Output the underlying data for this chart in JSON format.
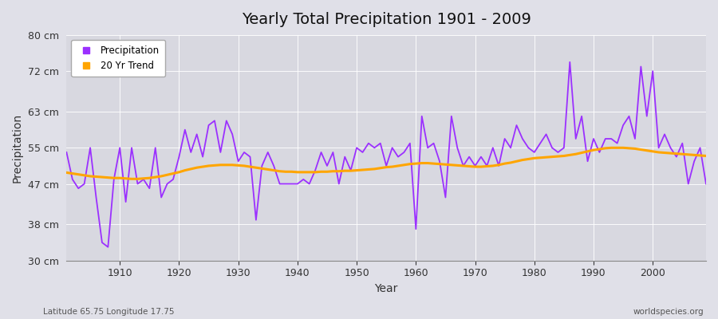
{
  "title": "Yearly Total Precipitation 1901 - 2009",
  "xlabel": "Year",
  "ylabel": "Precipitation",
  "subtitle": "Latitude 65.75 Longitude 17.75",
  "watermark": "worldspecies.org",
  "ylim": [
    30,
    80
  ],
  "yticks": [
    30,
    38,
    47,
    55,
    63,
    72,
    80
  ],
  "ytick_labels": [
    "30 cm",
    "38 cm",
    "47 cm",
    "55 cm",
    "63 cm",
    "72 cm",
    "80 cm"
  ],
  "xlim": [
    1901,
    2009
  ],
  "xticks": [
    1910,
    1920,
    1930,
    1940,
    1950,
    1960,
    1970,
    1980,
    1990,
    2000
  ],
  "precip_color": "#9B30FF",
  "trend_color": "#FFA500",
  "bg_color": "#E8E8EE",
  "plot_bg_color": "#DCDCE4",
  "grid_color": "#FFFFFF",
  "years": [
    1901,
    1902,
    1903,
    1904,
    1905,
    1906,
    1907,
    1908,
    1909,
    1910,
    1911,
    1912,
    1913,
    1914,
    1915,
    1916,
    1917,
    1918,
    1919,
    1920,
    1921,
    1922,
    1923,
    1924,
    1925,
    1926,
    1927,
    1928,
    1929,
    1930,
    1931,
    1932,
    1933,
    1934,
    1935,
    1936,
    1937,
    1938,
    1939,
    1940,
    1941,
    1942,
    1943,
    1944,
    1945,
    1946,
    1947,
    1948,
    1949,
    1950,
    1951,
    1952,
    1953,
    1954,
    1955,
    1956,
    1957,
    1958,
    1959,
    1960,
    1961,
    1962,
    1963,
    1964,
    1965,
    1966,
    1967,
    1968,
    1969,
    1970,
    1971,
    1972,
    1973,
    1974,
    1975,
    1976,
    1977,
    1978,
    1979,
    1980,
    1981,
    1982,
    1983,
    1984,
    1985,
    1986,
    1987,
    1988,
    1989,
    1990,
    1991,
    1992,
    1993,
    1994,
    1995,
    1996,
    1997,
    1998,
    1999,
    2000,
    2001,
    2002,
    2003,
    2004,
    2005,
    2006,
    2007,
    2008,
    2009
  ],
  "precip": [
    54,
    48,
    46,
    47,
    55,
    44,
    34,
    33,
    48,
    55,
    43,
    55,
    47,
    48,
    46,
    55,
    44,
    47,
    48,
    53,
    59,
    54,
    58,
    53,
    60,
    61,
    54,
    61,
    58,
    52,
    54,
    53,
    39,
    51,
    54,
    51,
    47,
    47,
    47,
    47,
    48,
    47,
    50,
    54,
    51,
    54,
    47,
    53,
    50,
    55,
    54,
    56,
    55,
    56,
    51,
    55,
    53,
    54,
    56,
    37,
    62,
    55,
    56,
    52,
    44,
    62,
    55,
    51,
    53,
    51,
    53,
    51,
    55,
    51,
    57,
    55,
    60,
    57,
    55,
    54,
    56,
    58,
    55,
    54,
    55,
    74,
    57,
    62,
    52,
    57,
    54,
    57,
    57,
    56,
    60,
    62,
    57,
    73,
    62,
    72,
    55,
    58,
    55,
    53,
    56,
    47,
    52,
    55,
    47
  ],
  "trend": [
    49.5,
    49.3,
    49.1,
    48.9,
    48.7,
    48.6,
    48.5,
    48.4,
    48.3,
    48.3,
    48.2,
    48.1,
    48.1,
    48.2,
    48.3,
    48.5,
    48.7,
    49.0,
    49.3,
    49.6,
    50.0,
    50.3,
    50.6,
    50.8,
    51.0,
    51.1,
    51.2,
    51.2,
    51.2,
    51.1,
    51.0,
    50.8,
    50.6,
    50.4,
    50.2,
    50.0,
    49.8,
    49.7,
    49.7,
    49.6,
    49.6,
    49.6,
    49.6,
    49.7,
    49.7,
    49.8,
    49.8,
    49.9,
    49.9,
    50.0,
    50.1,
    50.2,
    50.3,
    50.5,
    50.7,
    50.8,
    51.0,
    51.2,
    51.4,
    51.5,
    51.6,
    51.6,
    51.5,
    51.4,
    51.3,
    51.2,
    51.1,
    51.0,
    50.9,
    50.8,
    50.8,
    50.9,
    51.0,
    51.2,
    51.5,
    51.7,
    52.0,
    52.3,
    52.5,
    52.7,
    52.8,
    52.9,
    53.0,
    53.1,
    53.2,
    53.4,
    53.6,
    53.9,
    54.2,
    54.5,
    54.7,
    54.9,
    55.0,
    55.0,
    55.0,
    54.9,
    54.8,
    54.6,
    54.4,
    54.2,
    54.0,
    53.9,
    53.8,
    53.7,
    53.6,
    53.5,
    53.4,
    53.3,
    53.2
  ]
}
